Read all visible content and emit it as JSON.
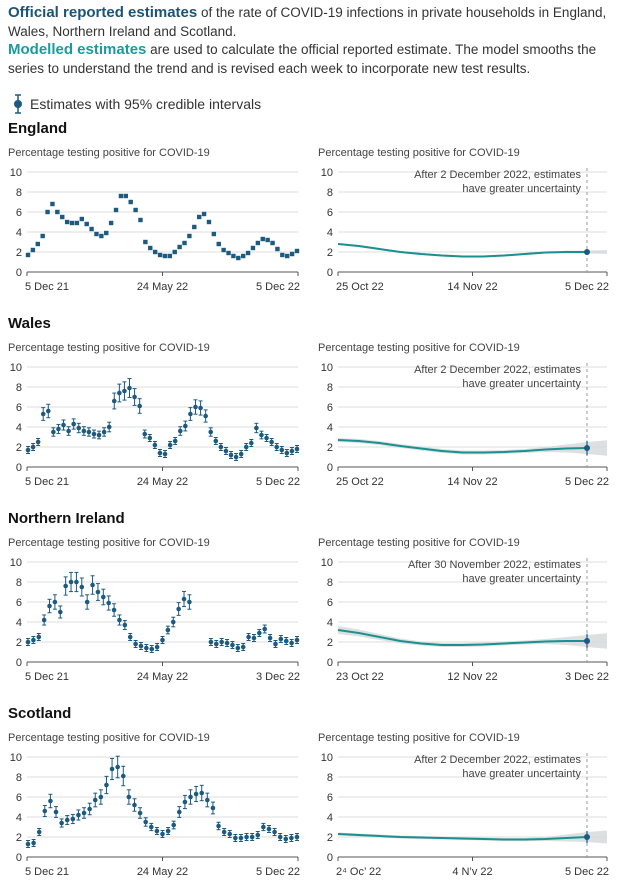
{
  "intro": {
    "official_title": "Official reported estimates",
    "official_text": " of the rate of COVID-19 infections in private households in England, Wales, Northern Ireland and Scotland.",
    "modelled_title": "Modelled estimates",
    "modelled_text": " are used to calculate the official reported estimate. The model smooths the series to understand the trend and is revised each week to incorporate new test results."
  },
  "legend": {
    "label": "Estimates with 95% credible intervals"
  },
  "colors": {
    "point": "#1d5a80",
    "line": "#1a9090",
    "band": "#d4d8da",
    "grid": "#dddddd",
    "axis": "#555555"
  },
  "chart_data": [
    {
      "region": "England",
      "type": "scatter",
      "ylabel": "Percentage testing positive for COVID-19",
      "ylim": [
        0,
        10
      ],
      "yticks": [
        "0",
        "2",
        "4",
        "6",
        "8",
        "10"
      ],
      "xlabels": [
        "5 Dec 21",
        "24 May 22",
        "5 Dec 22"
      ],
      "values": [
        1.7,
        2.2,
        2.8,
        3.6,
        6.0,
        6.8,
        6.0,
        5.5,
        5.0,
        4.9,
        4.9,
        5.3,
        4.8,
        4.3,
        3.8,
        3.6,
        3.9,
        4.9,
        6.2,
        7.6,
        7.6,
        7.0,
        6.2,
        5.2,
        3.0,
        2.4,
        2.0,
        1.7,
        1.6,
        1.6,
        2.0,
        2.5,
        2.9,
        3.6,
        4.5,
        5.5,
        5.8,
        5.0,
        3.8,
        2.8,
        2.2,
        1.9,
        1.6,
        1.4,
        1.6,
        1.9,
        2.4,
        2.9,
        3.3,
        3.2,
        2.9,
        2.3,
        1.7,
        1.6,
        1.8,
        2.1
      ],
      "has_error": false
    },
    {
      "region": "England",
      "type": "line",
      "ylabel": "Percentage testing positive for COVID-19",
      "ylim": [
        0,
        10
      ],
      "yticks": [
        "0",
        "2",
        "4",
        "6",
        "8",
        "10"
      ],
      "xlabels": [
        "25 Oct 22",
        "14 Nov 22",
        "5 Dec 22"
      ],
      "annotation_line1": "After 2 December 2022, estimates",
      "annotation_line2": "have greater uncertainty",
      "values": [
        2.8,
        2.6,
        2.3,
        2.0,
        1.8,
        1.65,
        1.55,
        1.55,
        1.65,
        1.8,
        1.95,
        2.0,
        2.0
      ],
      "band": [
        0.1,
        0.1,
        0.1,
        0.1,
        0.1,
        0.1,
        0.1,
        0.1,
        0.1,
        0.1,
        0.1,
        0.12,
        0.15
      ],
      "endpoint": 2.0
    },
    {
      "region": "Wales",
      "type": "scatter",
      "ylabel": "Percentage testing positive for COVID-19",
      "ylim": [
        0,
        10
      ],
      "yticks": [
        "0",
        "2",
        "4",
        "6",
        "8",
        "10"
      ],
      "xlabels": [
        "5 Dec 21",
        "24 May 22",
        "5 Dec 22"
      ],
      "values": [
        1.7,
        2.0,
        2.5,
        5.3,
        5.6,
        3.5,
        3.8,
        4.2,
        3.6,
        4.3,
        3.9,
        3.6,
        3.5,
        3.3,
        3.2,
        3.5,
        4.0,
        6.6,
        7.4,
        7.6,
        7.9,
        7.0,
        6.1,
        3.3,
        2.9,
        2.2,
        1.4,
        1.3,
        2.2,
        2.6,
        3.6,
        4.1,
        5.3,
        6.0,
        5.9,
        5.1,
        3.5,
        2.6,
        2.0,
        1.6,
        1.2,
        1.0,
        1.3,
        2.0,
        2.4,
        3.9,
        3.2,
        2.9,
        2.5,
        2.0,
        1.7,
        1.4,
        1.6,
        1.8
      ],
      "has_error": true
    },
    {
      "region": "Wales",
      "type": "line",
      "ylabel": "Percentage testing positive for COVID-19",
      "ylim": [
        0,
        10
      ],
      "yticks": [
        "0",
        "2",
        "4",
        "6",
        "8",
        "10"
      ],
      "xlabels": [
        "25 Oct 22",
        "14 Nov 22",
        "5 Dec 22"
      ],
      "annotation_line1": "After 2 December 2022, estimates",
      "annotation_line2": "have greater uncertainty",
      "values": [
        2.7,
        2.6,
        2.4,
        2.1,
        1.85,
        1.6,
        1.45,
        1.45,
        1.5,
        1.6,
        1.75,
        1.85,
        1.9
      ],
      "band": [
        0.2,
        0.2,
        0.2,
        0.2,
        0.2,
        0.2,
        0.2,
        0.2,
        0.2,
        0.2,
        0.25,
        0.4,
        0.6
      ],
      "endpoint": 1.9
    },
    {
      "region": "Northern Ireland",
      "type": "scatter",
      "ylabel": "Percentage testing positive for COVID-19",
      "ylim": [
        0,
        10
      ],
      "yticks": [
        "0",
        "2",
        "4",
        "6",
        "8",
        "10"
      ],
      "xlabels": [
        "5 Dec 21",
        "24 May 22",
        "3 Dec 22"
      ],
      "values": [
        2.0,
        2.2,
        2.5,
        4.2,
        5.6,
        6.0,
        5.0,
        7.6,
        8.0,
        8.0,
        7.5,
        6.0,
        7.7,
        7.0,
        6.5,
        5.9,
        5.2,
        4.2,
        3.7,
        2.5,
        1.8,
        1.6,
        1.4,
        1.3,
        1.5,
        2.2,
        3.2,
        4.0,
        5.3,
        6.3,
        6.0,
        null,
        null,
        null,
        2.0,
        1.8,
        2.0,
        1.9,
        1.7,
        1.4,
        1.5,
        2.5,
        2.4,
        2.9,
        3.3,
        2.4,
        1.8,
        2.3,
        2.1,
        1.9,
        2.2
      ],
      "has_error": true
    },
    {
      "region": "Northern Ireland",
      "type": "line",
      "ylabel": "Percentage testing positive for COVID-19",
      "ylim": [
        0,
        10
      ],
      "yticks": [
        "0",
        "2",
        "4",
        "6",
        "8",
        "10"
      ],
      "xlabels": [
        "23 Oct 22",
        "12 Nov 22",
        "3 Dec 22"
      ],
      "annotation_line1": "After 30 November 2022, estimates",
      "annotation_line2": "have greater uncertainty",
      "values": [
        3.2,
        2.9,
        2.5,
        2.1,
        1.85,
        1.7,
        1.7,
        1.75,
        1.85,
        1.95,
        2.05,
        2.1,
        2.1
      ],
      "band": [
        0.4,
        0.35,
        0.3,
        0.25,
        0.2,
        0.2,
        0.2,
        0.2,
        0.2,
        0.2,
        0.25,
        0.4,
        0.6
      ],
      "endpoint": 2.1
    },
    {
      "region": "Scotland",
      "type": "scatter",
      "ylabel": "Percentage testing positive for COVID-19",
      "ylim": [
        0,
        10
      ],
      "yticks": [
        "0",
        "2",
        "4",
        "6",
        "8",
        "10"
      ],
      "xlabels": [
        "5 Dec 21",
        "24 May 22",
        "5 Dec 22"
      ],
      "values": [
        1.3,
        1.4,
        2.5,
        4.6,
        5.6,
        4.5,
        3.4,
        3.7,
        3.8,
        4.2,
        4.4,
        4.8,
        5.7,
        6.0,
        7.2,
        8.8,
        9.0,
        8.1,
        6.0,
        5.2,
        4.4,
        3.5,
        3.0,
        2.6,
        2.3,
        2.6,
        3.2,
        4.5,
        5.5,
        6.0,
        6.3,
        6.4,
        5.7,
        4.9,
        3.1,
        2.5,
        2.3,
        1.9,
        1.9,
        2.0,
        2.0,
        2.2,
        3.0,
        2.8,
        2.5,
        2.0,
        1.8,
        1.9,
        2.0
      ],
      "has_error": true
    },
    {
      "region": "Scotland",
      "type": "line",
      "ylabel": "Percentage testing positive for COVID-19",
      "ylim": [
        0,
        10
      ],
      "yticks": [
        "0",
        "2",
        "4",
        "6",
        "8",
        "10"
      ],
      "xlabels": [
        "2⁴ Oc’ 22",
        "4 N’v 22",
        "5 Dec 22"
      ],
      "annotation_line1": "After 2 December 2022, estimates",
      "annotation_line2": "have greater uncertainty",
      "values": [
        2.3,
        2.2,
        2.1,
        2.0,
        1.95,
        1.9,
        1.85,
        1.8,
        1.75,
        1.75,
        1.8,
        1.9,
        2.0
      ],
      "band": [
        0.15,
        0.15,
        0.15,
        0.15,
        0.15,
        0.15,
        0.15,
        0.15,
        0.15,
        0.15,
        0.2,
        0.35,
        0.5
      ],
      "endpoint": 2.0
    }
  ],
  "scotland_xlabels_display": [
    "5 Dec 21",
    "24 May 22",
    "5 Dec 22",
    "2⁴ Oc’ 22",
    "4 N’v 22",
    "5 Dec 22"
  ]
}
